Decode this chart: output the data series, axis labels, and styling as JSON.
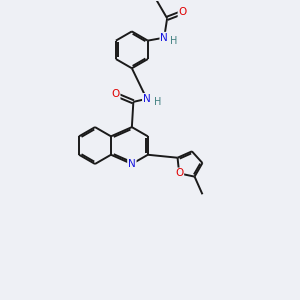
{
  "background_color": "#eef0f5",
  "bond_color": "#1a1a1a",
  "atom_colors": {
    "O": "#e00000",
    "N": "#1414e0",
    "H": "#408080",
    "C": "#1a1a1a"
  },
  "lw": 1.4,
  "off": 0.055,
  "fontsize": 7.5
}
